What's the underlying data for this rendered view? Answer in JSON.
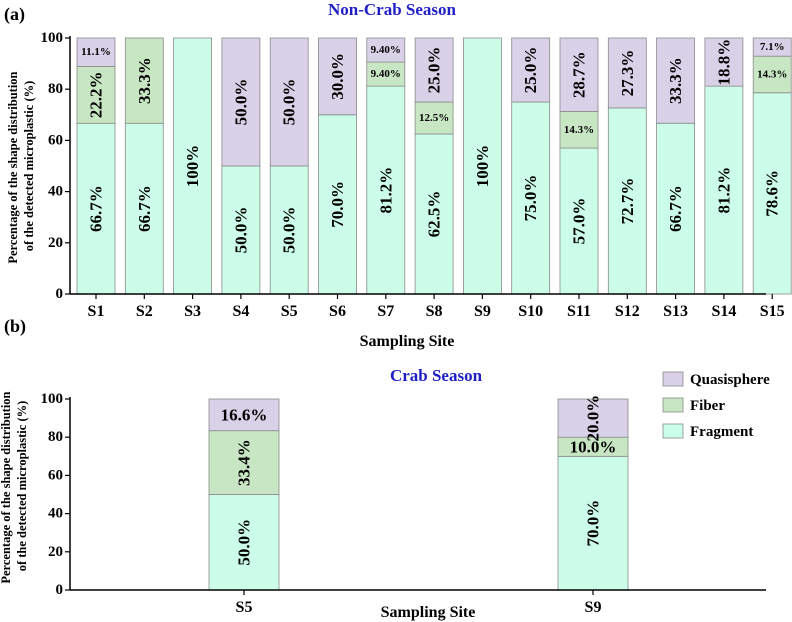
{
  "panel_labels": [
    "(a)",
    "(b)"
  ],
  "legend_items": [
    {
      "name": "Quasisphere",
      "color": "#d9d1e8"
    },
    {
      "name": "Fiber",
      "color": "#c8e6c4"
    },
    {
      "name": "Fragment",
      "color": "#ccfde9"
    }
  ],
  "chart_data": [
    {
      "type": "bar",
      "stacked": true,
      "title": "Non-Crab Season",
      "xlabel": "Sampling Site",
      "ylabel": "Percentage of the shape distribution of the detected microplastic  (%)",
      "ylim": [
        0,
        100
      ],
      "yticks": [
        0,
        20,
        40,
        60,
        80,
        100
      ],
      "categories": [
        "S1",
        "S2",
        "S3",
        "S4",
        "S5",
        "S6",
        "S7",
        "S8",
        "S9",
        "S10",
        "S11",
        "S12",
        "S13",
        "S14",
        "S15"
      ],
      "series": [
        {
          "name": "Fragment",
          "color": "#ccfde9",
          "values": [
            66.7,
            66.7,
            100,
            50.0,
            50.0,
            70.0,
            81.2,
            62.5,
            100,
            75.0,
            57.0,
            72.7,
            66.7,
            81.2,
            78.6
          ],
          "labels": [
            "66.7%",
            "66.7%",
            "100%",
            "50.0%",
            "50.0%",
            "70.0%",
            "81.2%",
            "62.5%",
            "100%",
            "75.0%",
            "57.0%",
            "72.7%",
            "66.7%",
            "81.2%",
            "78.6%"
          ]
        },
        {
          "name": "Fiber",
          "color": "#c8e6c4",
          "values": [
            22.2,
            33.3,
            0,
            0,
            0,
            0,
            9.4,
            12.5,
            0,
            0,
            14.3,
            0,
            0,
            0,
            14.3
          ],
          "labels": [
            "22.2%",
            "33.3%",
            "",
            "",
            "",
            "",
            "9.40%",
            "12.5%",
            "",
            "",
            "14.3%",
            "",
            "",
            "",
            "14.3%"
          ]
        },
        {
          "name": "Quasisphere",
          "color": "#d9d1e8",
          "values": [
            11.1,
            0,
            0,
            50.0,
            50.0,
            30.0,
            9.4,
            25.0,
            0,
            25.0,
            28.7,
            27.3,
            33.3,
            18.8,
            7.1
          ],
          "labels": [
            "11.1%",
            "",
            "",
            "50.0%",
            "50.0%",
            "30.0%",
            "9.40%",
            "25.0%",
            "",
            "25.0%",
            "28.7%",
            "27.3%",
            "33.3%",
            "18.8%",
            "7.1%"
          ]
        }
      ]
    },
    {
      "type": "bar",
      "stacked": true,
      "title": "Crab Season",
      "xlabel": "Sampling Site",
      "ylabel": "Percentage of the shape distribution of the detected microplastic  (%)",
      "ylim": [
        0,
        100
      ],
      "yticks": [
        0,
        20,
        40,
        60,
        80,
        100
      ],
      "categories": [
        "S5",
        "S9"
      ],
      "series": [
        {
          "name": "Fragment",
          "color": "#ccfde9",
          "values": [
            50.0,
            70.0
          ],
          "labels": [
            "50.0%",
            "70.0%"
          ]
        },
        {
          "name": "Fiber",
          "color": "#c8e6c4",
          "values": [
            33.4,
            10.0
          ],
          "labels": [
            "33.4%",
            "10.0%"
          ]
        },
        {
          "name": "Quasisphere",
          "color": "#d9d1e8",
          "values": [
            16.6,
            20.0
          ],
          "labels": [
            "16.6%",
            "20.0%"
          ]
        }
      ],
      "legend": "top-right"
    }
  ]
}
